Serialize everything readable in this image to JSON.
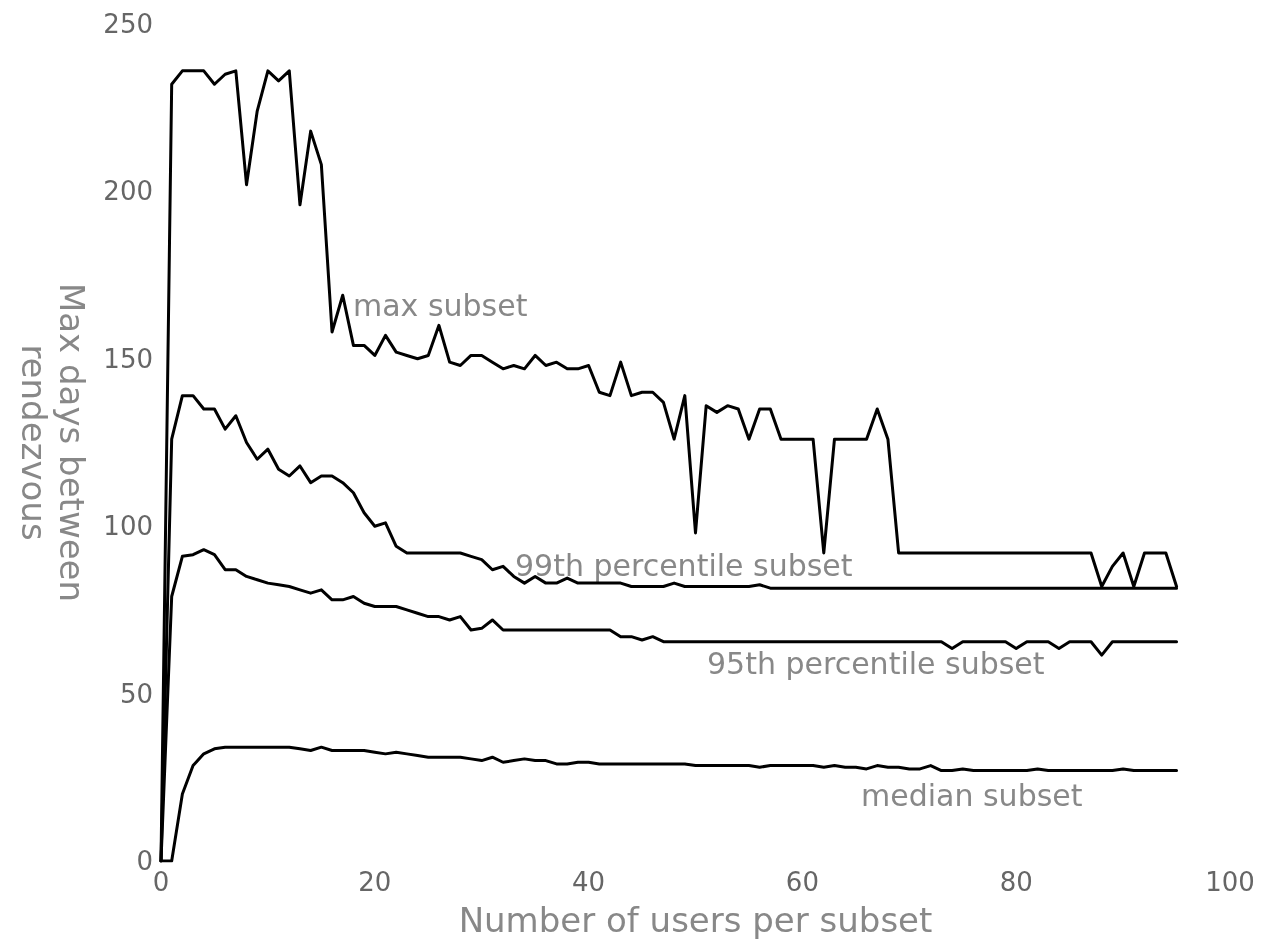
{
  "chart_data": {
    "type": "line",
    "xlabel": "Number of users per subset",
    "ylabel": "Max days between\nrendezvous",
    "x": [
      0,
      1,
      2,
      3,
      4,
      5,
      6,
      7,
      8,
      9,
      10,
      11,
      12,
      13,
      14,
      15,
      16,
      17,
      18,
      19,
      20,
      21,
      22,
      23,
      24,
      25,
      26,
      27,
      28,
      29,
      30,
      31,
      32,
      33,
      34,
      35,
      36,
      37,
      38,
      39,
      40,
      41,
      42,
      43,
      44,
      45,
      46,
      47,
      48,
      49,
      50,
      51,
      52,
      53,
      54,
      55,
      56,
      57,
      58,
      59,
      60,
      61,
      62,
      63,
      64,
      65,
      66,
      67,
      68,
      69,
      70,
      71,
      72,
      73,
      74,
      75,
      76,
      77,
      78,
      79,
      80,
      81,
      82,
      83,
      84,
      85,
      86,
      87,
      88,
      89,
      90,
      91,
      92,
      93,
      94,
      95
    ],
    "series": [
      {
        "name": "max subset",
        "color": "#000000",
        "values": [
          0,
          232,
          236,
          236,
          236,
          232,
          235,
          236,
          202,
          224,
          236,
          233,
          236,
          196,
          218,
          208,
          158,
          169,
          154,
          154,
          151,
          157,
          152,
          151,
          150,
          151,
          160,
          149,
          148,
          151,
          151,
          149,
          147,
          148,
          147,
          151,
          148,
          149,
          147,
          147,
          148,
          140,
          139,
          149,
          139,
          140,
          140,
          137,
          126,
          139,
          98,
          136,
          134,
          136,
          135,
          126,
          135,
          135,
          126,
          126,
          126,
          126,
          92,
          126,
          126,
          126,
          126,
          135,
          126,
          92,
          92,
          92,
          92,
          92,
          92,
          92,
          92,
          92,
          92,
          92,
          92,
          92,
          92,
          92,
          92,
          92,
          92,
          92,
          82,
          88,
          92,
          82,
          92,
          92,
          92,
          82
        ]
      },
      {
        "name": "99th percentile subset",
        "color": "#000000",
        "values": [
          0,
          126,
          139,
          139,
          135,
          135,
          129,
          133,
          125,
          120,
          123,
          117,
          115,
          118,
          113,
          115,
          115,
          113,
          110,
          104,
          100,
          101,
          94,
          92,
          92,
          92,
          92,
          92,
          92,
          91,
          90,
          87,
          88,
          85,
          83,
          85,
          83,
          83,
          84.5,
          83,
          83,
          83,
          83,
          83,
          82,
          82,
          82,
          82,
          83,
          82,
          82,
          82,
          82,
          82,
          82,
          82,
          82.5,
          81.5,
          81.5,
          81.5,
          81.5,
          81.5,
          81.5,
          81.5,
          81.5,
          81.5,
          81.5,
          81.5,
          81.5,
          81.5,
          81.5,
          81.5,
          81.5,
          81.5,
          81.5,
          81.5,
          81.5,
          81.5,
          81.5,
          81.5,
          81.5,
          81.5,
          81.5,
          81.5,
          81.5,
          81.5,
          81.5,
          81.5,
          81.5,
          81.5,
          81.5,
          81.5,
          81.5,
          81.5,
          81.5,
          81.5
        ]
      },
      {
        "name": "95th percentile subset",
        "color": "#000000",
        "values": [
          0,
          79,
          91,
          91.5,
          93,
          91.5,
          87,
          87,
          85,
          84,
          83,
          82.5,
          82,
          81,
          80,
          81,
          78,
          78,
          79,
          77,
          76,
          76,
          76,
          75,
          74,
          73,
          73,
          72,
          73,
          69,
          69.5,
          72,
          69,
          69,
          69,
          69,
          69,
          69,
          69,
          69,
          69,
          69,
          69,
          67,
          67,
          66,
          67,
          65.5,
          65.5,
          65.5,
          65.5,
          65.5,
          65.5,
          65.5,
          65.5,
          65.5,
          65.5,
          65.5,
          65.5,
          65.5,
          65.5,
          65.5,
          65.5,
          65.5,
          65.5,
          65.5,
          65.5,
          65.5,
          65.5,
          65.5,
          65.5,
          65.5,
          65.5,
          65.5,
          63.5,
          65.5,
          65.5,
          65.5,
          65.5,
          65.5,
          63.5,
          65.5,
          65.5,
          65.5,
          63.5,
          65.5,
          65.5,
          65.5,
          61.5,
          65.5,
          65.5,
          65.5,
          65.5,
          65.5,
          65.5,
          65.5
        ]
      },
      {
        "name": "median subset",
        "color": "#000000",
        "values": [
          0,
          0,
          20,
          28.5,
          32,
          33.5,
          34,
          34,
          34,
          34,
          34,
          34,
          34,
          33.5,
          33,
          34,
          33,
          33,
          33,
          33,
          32.5,
          32,
          32.5,
          32,
          31.5,
          31,
          31,
          31,
          31,
          30.5,
          30,
          31,
          29.5,
          30,
          30.5,
          30,
          30,
          29,
          29,
          29.5,
          29.5,
          29,
          29,
          29,
          29,
          29,
          29,
          29,
          29,
          29,
          28.5,
          28.5,
          28.5,
          28.5,
          28.5,
          28.5,
          28,
          28.5,
          28.5,
          28.5,
          28.5,
          28.5,
          28,
          28.5,
          28,
          28,
          27.5,
          28.5,
          28,
          28,
          27.5,
          27.5,
          28.5,
          27,
          27,
          27.5,
          27,
          27,
          27,
          27,
          27,
          27,
          27.5,
          27,
          27,
          27,
          27,
          27,
          27,
          27,
          27.5,
          27,
          27,
          27,
          27,
          27
        ]
      }
    ],
    "xlim": [
      0,
      100
    ],
    "xticks": [
      0,
      20,
      40,
      60,
      80,
      100
    ],
    "ylim": [
      0,
      250
    ],
    "yticks": [
      0,
      50,
      100,
      150,
      200,
      250
    ]
  }
}
